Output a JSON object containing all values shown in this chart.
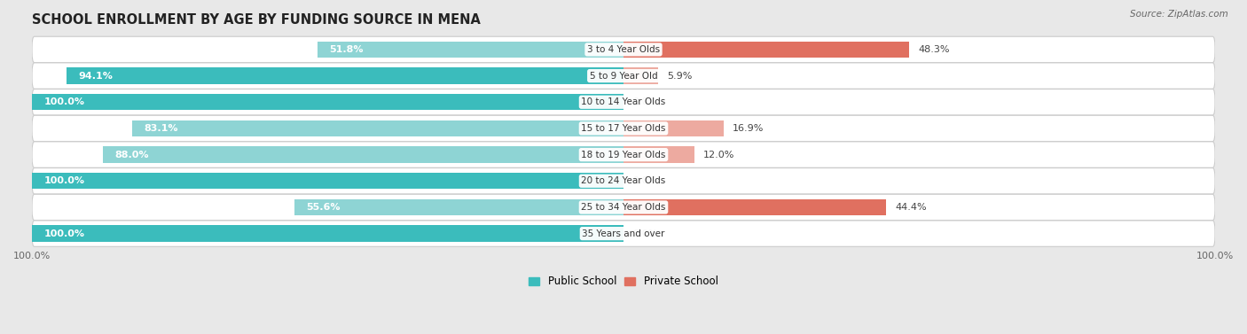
{
  "title": "SCHOOL ENROLLMENT BY AGE BY FUNDING SOURCE IN MENA",
  "source": "Source: ZipAtlas.com",
  "categories": [
    "3 to 4 Year Olds",
    "5 to 9 Year Old",
    "10 to 14 Year Olds",
    "15 to 17 Year Olds",
    "18 to 19 Year Olds",
    "20 to 24 Year Olds",
    "25 to 34 Year Olds",
    "35 Years and over"
  ],
  "public_values": [
    51.8,
    94.1,
    100.0,
    83.1,
    88.0,
    100.0,
    55.6,
    100.0
  ],
  "private_values": [
    48.3,
    5.9,
    0.0,
    16.9,
    12.0,
    0.0,
    44.4,
    0.0
  ],
  "pub_dark": "#3BBCBC",
  "pub_light": "#8ED4D4",
  "priv_dark": "#E07060",
  "priv_light": "#EDAAA0",
  "bg_color": "#e8e8e8",
  "row_bg_white": "#f5f5f5",
  "bar_height": 0.62,
  "title_fontsize": 10.5,
  "label_fontsize": 8.0,
  "tick_fontsize": 8.0,
  "legend_fontsize": 8.5
}
